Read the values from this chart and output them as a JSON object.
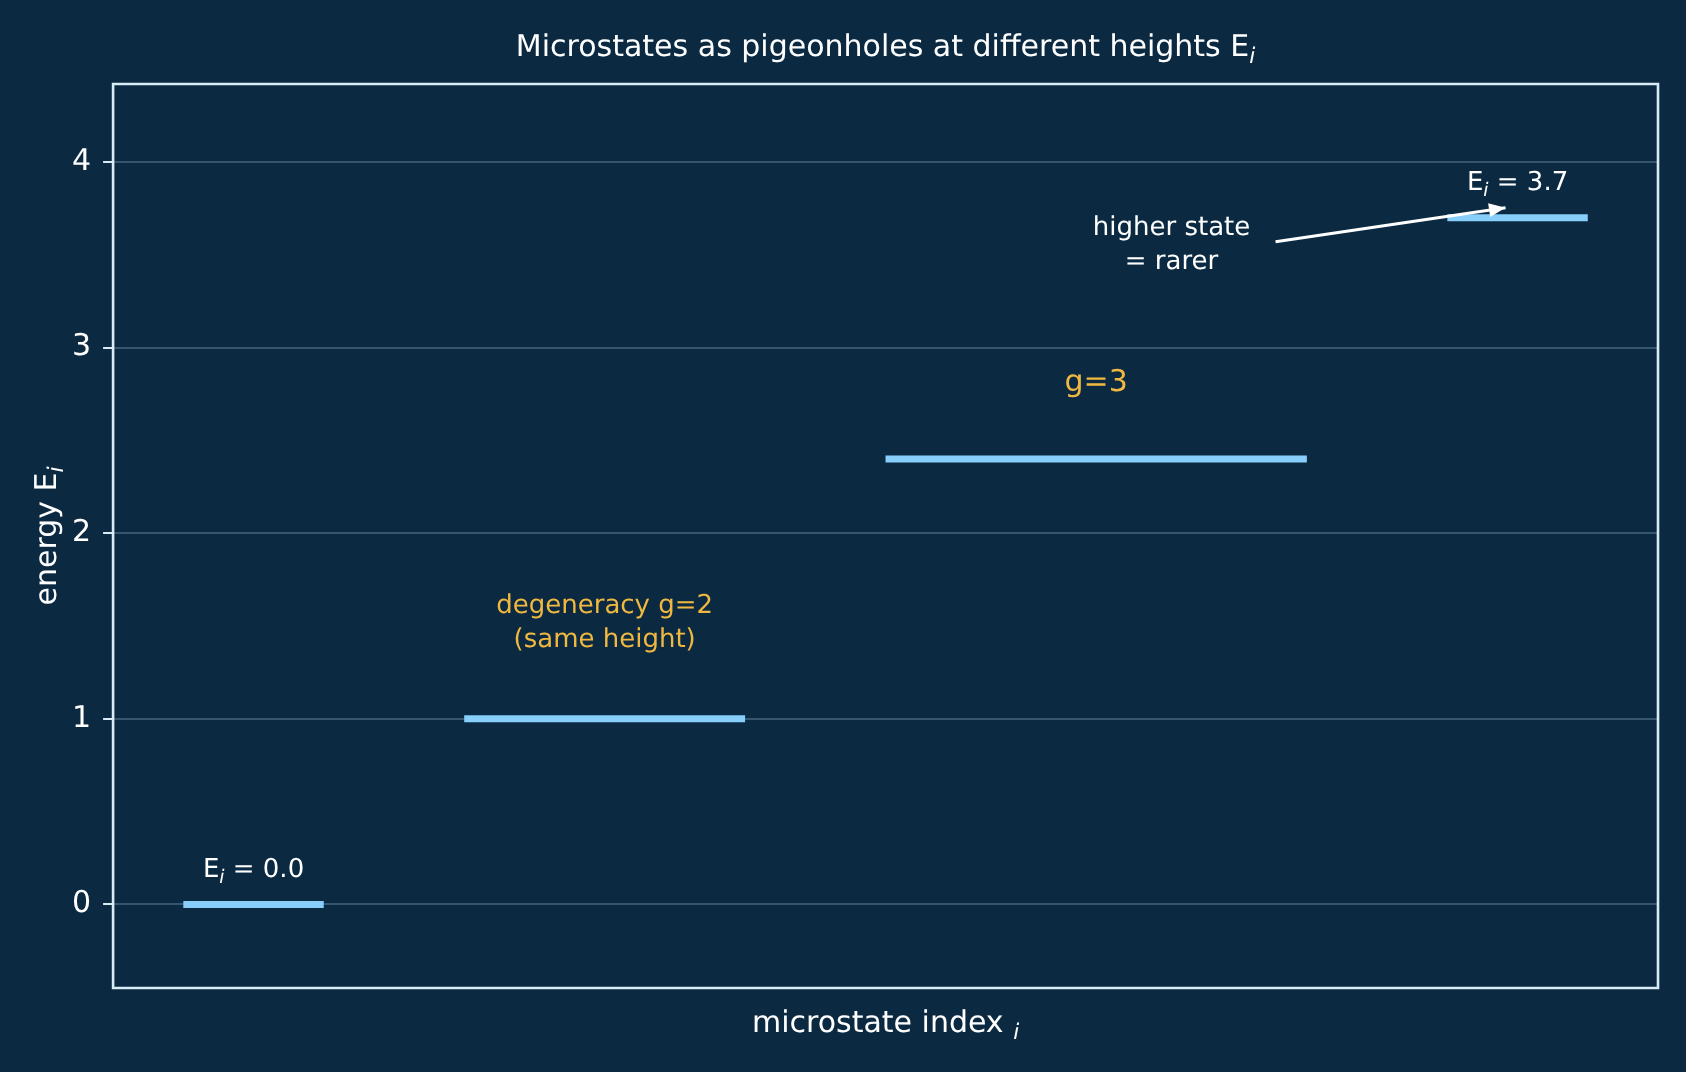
{
  "chart_data": {
    "type": "line",
    "marker": "none",
    "title": "Microstates as pigeonholes at different heights E$_{i}$",
    "xlabel": "microstate index $_{i}$",
    "ylabel": "energy E$_{i}$",
    "categories": [
      null,
      null,
      null,
      null,
      null,
      null,
      null,
      null,
      null,
      null,
      null
    ],
    "series": [
      {
        "color": "#87cefa",
        "values": [
          0,
          0,
          null,
          null,
          null,
          null,
          null,
          null,
          null,
          null,
          null
        ]
      },
      {
        "color": "#87cefa",
        "values": [
          null,
          null,
          1,
          1,
          1,
          null,
          null,
          null,
          null,
          null,
          null
        ]
      },
      {
        "color": "#87cefa",
        "values": [
          null,
          null,
          null,
          null,
          null,
          2.4,
          2.4,
          2.4,
          2.4,
          null,
          null
        ]
      },
      {
        "color": "#87cefa",
        "values": [
          null,
          null,
          null,
          null,
          null,
          null,
          null,
          null,
          null,
          3.7,
          3.7
        ]
      }
    ],
    "ylim": [
      -0.45,
      4.42
    ],
    "yticks": [
      0,
      1,
      2,
      3,
      4
    ],
    "tick_labels": "y",
    "grid": "y",
    "annotations": [
      "E$_{i}$ = 0.0",
      "degeneracy g=2\n(same height)",
      "g=3",
      "higher state\n= rarer",
      "E$_{i}$ = 3.7"
    ]
  }
}
